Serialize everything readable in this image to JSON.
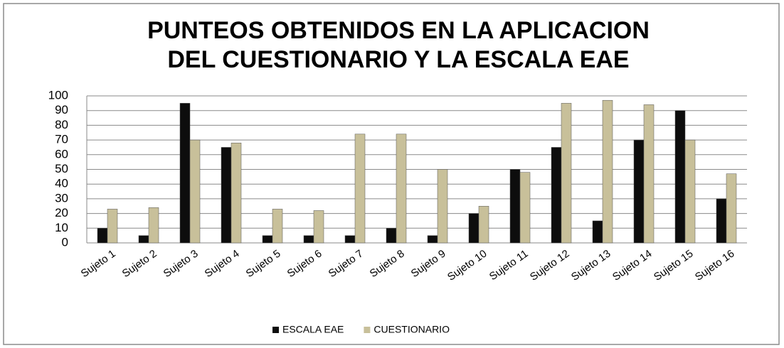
{
  "chart_data": {
    "type": "bar",
    "title": [
      "PUNTEOS OBTENIDOS EN LA APLICACION",
      "DEL CUESTIONARIO Y LA ESCALA EAE"
    ],
    "categories": [
      "Sujeto 1",
      "Sujeto 2",
      "Sujeto 3",
      "Sujeto 4",
      "Sujeto 5",
      "Sujeto 6",
      "Sujeto 7",
      "Sujeto 8",
      "Sujeto 9",
      "Sujeto 10",
      "Sujeto 11",
      "Sujeto 12",
      "Sujeto 13",
      "Sujeto 14",
      "Sujeto 15",
      "Sujeto 16"
    ],
    "series": [
      {
        "name": "ESCALA EAE",
        "color": "#0d0d0d",
        "values": [
          10,
          5,
          95,
          65,
          5,
          5,
          5,
          10,
          5,
          20,
          50,
          65,
          15,
          70,
          90,
          30
        ]
      },
      {
        "name": "CUESTIONARIO",
        "color": "#c8c09a",
        "values": [
          23,
          24,
          70,
          68,
          23,
          22,
          74,
          74,
          50,
          25,
          48,
          95,
          97,
          94,
          70,
          47
        ]
      }
    ],
    "ylim": [
      0,
      100
    ],
    "yticks": [
      0,
      10,
      20,
      30,
      40,
      50,
      60,
      70,
      80,
      90,
      100
    ],
    "grid": true,
    "legend": "bottom"
  }
}
